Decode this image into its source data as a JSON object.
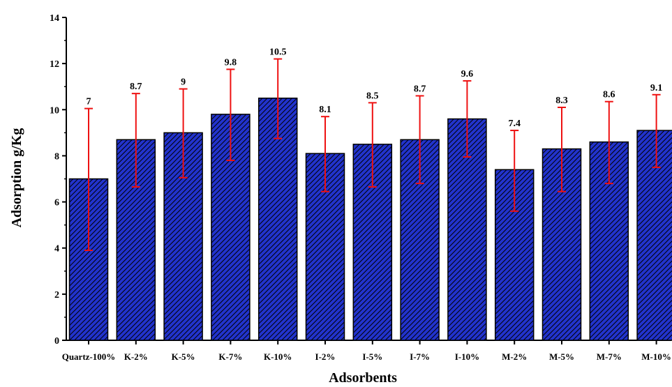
{
  "chart_data": {
    "type": "bar",
    "xlabel": "Adsorbents",
    "ylabel": "Adsorption g/Kg",
    "ylim": [
      0,
      14
    ],
    "yticks": [
      0,
      2,
      4,
      6,
      8,
      10,
      12,
      14
    ],
    "categories": [
      "Quartz-100%",
      "K-2%",
      "K-5%",
      "K-7%",
      "K-10%",
      "I-2%",
      "I-5%",
      "I-7%",
      "I-10%",
      "M-2%",
      "M-5%",
      "M-7%",
      "M-10%"
    ],
    "values": [
      7,
      8.7,
      9,
      9.8,
      10.5,
      8.1,
      8.5,
      8.7,
      9.6,
      7.4,
      8.3,
      8.6,
      9.1
    ],
    "value_labels": [
      "7",
      "8.7",
      "9",
      "9.8",
      "10.5",
      "8.1",
      "8.5",
      "8.7",
      "9.6",
      "7.4",
      "8.3",
      "8.6",
      "9.1"
    ],
    "error_low": [
      3.9,
      6.65,
      7.05,
      7.8,
      8.75,
      6.45,
      6.65,
      6.8,
      7.95,
      5.6,
      6.45,
      6.8,
      7.5
    ],
    "error_high": [
      10.05,
      10.7,
      10.9,
      11.75,
      12.2,
      9.7,
      10.3,
      10.6,
      11.25,
      9.1,
      10.1,
      10.35,
      10.65
    ],
    "grid": false,
    "bar_color": "#2233cc",
    "hatch_color": "#000000",
    "error_color": "#ee1111"
  }
}
